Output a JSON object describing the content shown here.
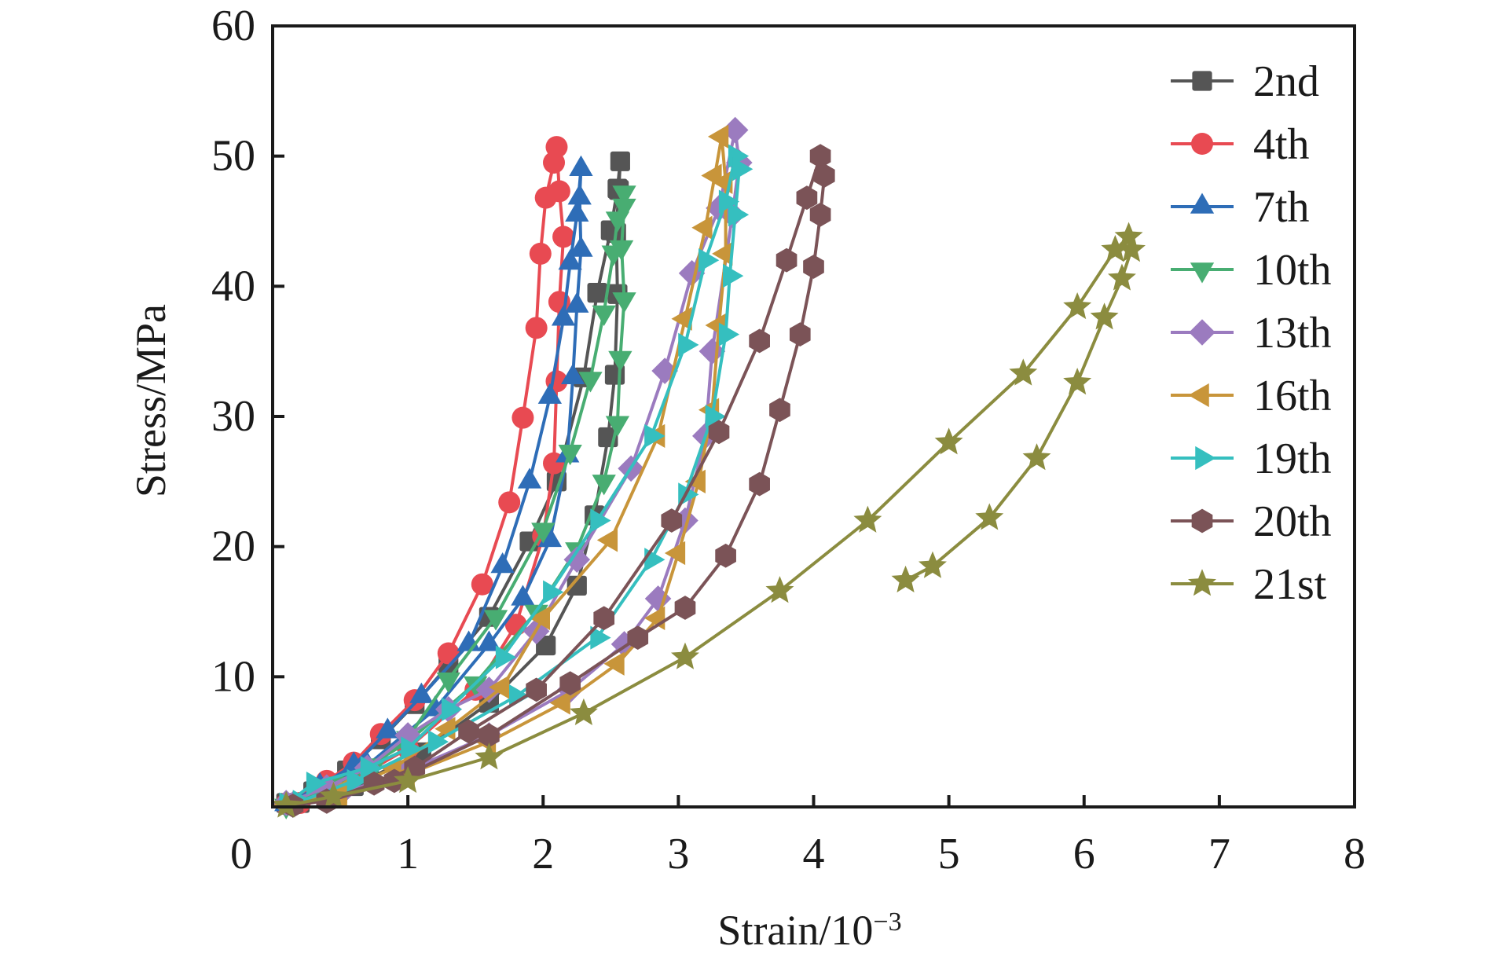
{
  "chart_data": {
    "type": "line",
    "title": "",
    "xlabel": "Strain/10",
    "xlabel_superscript": "−3",
    "ylabel": "Stress/MPa",
    "xlim": [
      0,
      8
    ],
    "ylim": [
      0,
      60
    ],
    "xticks": [
      "0",
      "1",
      "2",
      "3",
      "4",
      "5",
      "6",
      "7",
      "8"
    ],
    "yticks": [
      "10",
      "20",
      "30",
      "40",
      "50",
      "60"
    ],
    "grid": false,
    "legend_position": "top-right",
    "series": [
      {
        "name": "2nd",
        "color": "#555555",
        "marker": "square",
        "points": [
          [
            0.1,
            0.3
          ],
          [
            0.3,
            1.2
          ],
          [
            0.55,
            2.8
          ],
          [
            0.8,
            5.2
          ],
          [
            1.05,
            7.9
          ],
          [
            1.3,
            10.9
          ],
          [
            1.6,
            14.6
          ],
          [
            1.9,
            20.4
          ],
          [
            2.1,
            25.0
          ],
          [
            2.3,
            33.0
          ],
          [
            2.4,
            39.5
          ],
          [
            2.5,
            44.3
          ],
          [
            2.55,
            47.5
          ],
          [
            2.57,
            49.6
          ],
          [
            2.56,
            47.4
          ],
          [
            2.54,
            44.1
          ],
          [
            2.55,
            39.4
          ],
          [
            2.53,
            33.2
          ],
          [
            2.48,
            28.4
          ],
          [
            2.38,
            22.4
          ],
          [
            2.25,
            17.0
          ],
          [
            2.02,
            12.4
          ],
          [
            1.6,
            8.0
          ],
          [
            1.1,
            4.2
          ],
          [
            0.6,
            1.6
          ],
          [
            0.2,
            0.3
          ]
        ]
      },
      {
        "name": "4th",
        "color": "#e84a52",
        "marker": "circle",
        "points": [
          [
            0.1,
            0.2
          ],
          [
            0.4,
            2.0
          ],
          [
            0.6,
            3.4
          ],
          [
            0.8,
            5.6
          ],
          [
            1.05,
            8.2
          ],
          [
            1.3,
            11.8
          ],
          [
            1.55,
            17.1
          ],
          [
            1.75,
            23.4
          ],
          [
            1.85,
            29.9
          ],
          [
            1.95,
            36.8
          ],
          [
            1.98,
            42.5
          ],
          [
            2.02,
            46.8
          ],
          [
            2.08,
            49.5
          ],
          [
            2.1,
            50.7
          ],
          [
            2.12,
            47.3
          ],
          [
            2.15,
            43.8
          ],
          [
            2.12,
            38.8
          ],
          [
            2.1,
            32.7
          ],
          [
            2.08,
            26.4
          ],
          [
            2.0,
            20.8
          ],
          [
            1.8,
            14.0
          ],
          [
            1.5,
            9.0
          ],
          [
            1.0,
            4.5
          ],
          [
            0.5,
            1.5
          ],
          [
            0.2,
            0.3
          ]
        ]
      },
      {
        "name": "7th",
        "color": "#2e6db7",
        "marker": "triangle-up",
        "points": [
          [
            0.1,
            0.2
          ],
          [
            0.35,
            1.6
          ],
          [
            0.6,
            3.2
          ],
          [
            0.85,
            5.8
          ],
          [
            1.1,
            8.5
          ],
          [
            1.45,
            12.5
          ],
          [
            1.7,
            18.5
          ],
          [
            1.9,
            25.0
          ],
          [
            2.05,
            31.5
          ],
          [
            2.15,
            37.5
          ],
          [
            2.2,
            41.8
          ],
          [
            2.25,
            45.5
          ],
          [
            2.28,
            49.0
          ],
          [
            2.27,
            46.8
          ],
          [
            2.28,
            42.8
          ],
          [
            2.25,
            38.5
          ],
          [
            2.22,
            33.0
          ],
          [
            2.18,
            27.0
          ],
          [
            2.05,
            20.5
          ],
          [
            1.85,
            16.0
          ],
          [
            1.6,
            12.5
          ],
          [
            1.2,
            7.5
          ],
          [
            0.7,
            3.2
          ],
          [
            0.3,
            0.8
          ]
        ]
      },
      {
        "name": "10th",
        "color": "#48ad72",
        "marker": "triangle-down",
        "points": [
          [
            0.1,
            0.1
          ],
          [
            0.45,
            1.5
          ],
          [
            0.75,
            3.2
          ],
          [
            1.0,
            5.3
          ],
          [
            1.3,
            9.8
          ],
          [
            1.65,
            14.6
          ],
          [
            2.0,
            21.3
          ],
          [
            2.2,
            27.3
          ],
          [
            2.35,
            32.9
          ],
          [
            2.45,
            38.0
          ],
          [
            2.52,
            42.6
          ],
          [
            2.55,
            45.2
          ],
          [
            2.6,
            47.2
          ],
          [
            2.6,
            46.2
          ],
          [
            2.58,
            43.0
          ],
          [
            2.6,
            39.0
          ],
          [
            2.57,
            34.5
          ],
          [
            2.55,
            29.5
          ],
          [
            2.45,
            25.0
          ],
          [
            2.25,
            19.8
          ],
          [
            1.95,
            15.0
          ],
          [
            1.5,
            9.5
          ],
          [
            1.0,
            5.0
          ],
          [
            0.5,
            1.8
          ],
          [
            0.15,
            0.2
          ]
        ]
      },
      {
        "name": "13th",
        "color": "#9b7bbf",
        "marker": "diamond",
        "points": [
          [
            0.1,
            0.3
          ],
          [
            0.4,
            1.5
          ],
          [
            0.7,
            3.0
          ],
          [
            1.0,
            5.5
          ],
          [
            1.3,
            7.5
          ],
          [
            1.6,
            9.0
          ],
          [
            1.95,
            13.5
          ],
          [
            2.25,
            19.0
          ],
          [
            2.65,
            26.0
          ],
          [
            2.9,
            33.5
          ],
          [
            3.1,
            41.0
          ],
          [
            3.3,
            46.0
          ],
          [
            3.42,
            52.0
          ],
          [
            3.45,
            49.5
          ],
          [
            3.4,
            45.5
          ],
          [
            3.25,
            35.0
          ],
          [
            3.2,
            28.5
          ],
          [
            3.05,
            22.0
          ],
          [
            2.85,
            16.0
          ],
          [
            2.6,
            12.5
          ],
          [
            2.2,
            9.0
          ],
          [
            1.6,
            5.5
          ],
          [
            1.0,
            2.8
          ],
          [
            0.5,
            1.0
          ],
          [
            0.15,
            0.2
          ]
        ]
      },
      {
        "name": "16th",
        "color": "#c8953a",
        "marker": "triangle-left",
        "points": [
          [
            0.1,
            0.1
          ],
          [
            0.5,
            1.2
          ],
          [
            0.9,
            3.0
          ],
          [
            1.3,
            6.0
          ],
          [
            1.7,
            9.2
          ],
          [
            2.0,
            14.5
          ],
          [
            2.5,
            20.5
          ],
          [
            2.85,
            28.5
          ],
          [
            3.05,
            37.5
          ],
          [
            3.2,
            44.5
          ],
          [
            3.27,
            48.5
          ],
          [
            3.32,
            51.5
          ],
          [
            3.35,
            48.0
          ],
          [
            3.35,
            42.5
          ],
          [
            3.3,
            37.0
          ],
          [
            3.25,
            30.5
          ],
          [
            3.15,
            25.0
          ],
          [
            3.0,
            19.5
          ],
          [
            2.85,
            14.5
          ],
          [
            2.55,
            11.0
          ],
          [
            2.15,
            8.0
          ],
          [
            1.6,
            5.0
          ],
          [
            1.0,
            2.5
          ],
          [
            0.5,
            0.8
          ]
        ]
      },
      {
        "name": "19th",
        "color": "#35bfbf",
        "marker": "triangle-right",
        "points": [
          [
            0.1,
            0.2
          ],
          [
            0.3,
            1.8
          ],
          [
            0.7,
            3.0
          ],
          [
            1.0,
            4.5
          ],
          [
            1.3,
            7.5
          ],
          [
            1.7,
            11.5
          ],
          [
            2.05,
            16.5
          ],
          [
            2.4,
            22.0
          ],
          [
            2.8,
            28.5
          ],
          [
            3.05,
            35.5
          ],
          [
            3.2,
            42.0
          ],
          [
            3.35,
            46.5
          ],
          [
            3.42,
            50.0
          ],
          [
            3.45,
            49.0
          ],
          [
            3.42,
            45.5
          ],
          [
            3.38,
            40.8
          ],
          [
            3.35,
            36.3
          ],
          [
            3.25,
            30.0
          ],
          [
            3.05,
            24.0
          ],
          [
            2.8,
            19.0
          ],
          [
            2.4,
            13.0
          ],
          [
            1.8,
            8.5
          ],
          [
            1.2,
            5.0
          ],
          [
            0.6,
            2.0
          ],
          [
            0.2,
            0.4
          ]
        ]
      },
      {
        "name": "20th",
        "color": "#7b5357",
        "marker": "hexagon",
        "points": [
          [
            0.15,
            0.1
          ],
          [
            0.4,
            0.5
          ],
          [
            0.75,
            1.8
          ],
          [
            1.05,
            3.0
          ],
          [
            1.45,
            5.8
          ],
          [
            1.95,
            9.0
          ],
          [
            2.45,
            14.5
          ],
          [
            2.95,
            22.0
          ],
          [
            3.3,
            28.8
          ],
          [
            3.6,
            35.8
          ],
          [
            3.8,
            42.0
          ],
          [
            3.95,
            46.8
          ],
          [
            4.05,
            50.0
          ],
          [
            4.08,
            48.5
          ],
          [
            4.05,
            45.5
          ],
          [
            4.0,
            41.5
          ],
          [
            3.9,
            36.3
          ],
          [
            3.75,
            30.5
          ],
          [
            3.6,
            24.8
          ],
          [
            3.35,
            19.3
          ],
          [
            3.05,
            15.3
          ],
          [
            2.7,
            13.0
          ],
          [
            2.2,
            9.5
          ],
          [
            1.6,
            5.5
          ],
          [
            0.9,
            2.0
          ],
          [
            0.4,
            0.4
          ]
        ]
      },
      {
        "name": "21st",
        "color": "#8b8c3f",
        "marker": "star",
        "points": [
          [
            0.1,
            0.1
          ],
          [
            0.45,
            0.8
          ],
          [
            1.0,
            2.0
          ],
          [
            1.6,
            3.8
          ],
          [
            2.3,
            7.2
          ],
          [
            3.05,
            11.5
          ],
          [
            3.75,
            16.6
          ],
          [
            4.4,
            22.0
          ],
          [
            5.0,
            28.0
          ],
          [
            5.55,
            33.3
          ],
          [
            5.95,
            38.4
          ],
          [
            6.23,
            42.8
          ],
          [
            6.33,
            43.8
          ],
          [
            6.35,
            42.8
          ],
          [
            6.28,
            40.6
          ],
          [
            6.15,
            37.6
          ],
          [
            5.95,
            32.6
          ],
          [
            5.65,
            26.8
          ],
          [
            5.3,
            22.2
          ],
          [
            4.88,
            18.5
          ],
          [
            4.68,
            17.4
          ]
        ]
      }
    ]
  }
}
